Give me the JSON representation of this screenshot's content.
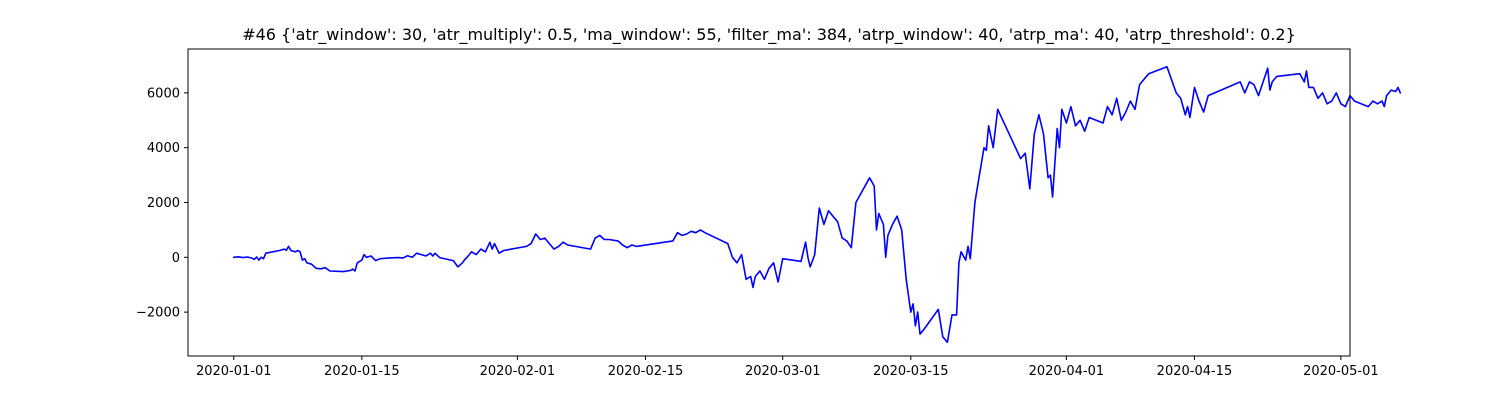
{
  "chart_data": {
    "type": "line",
    "title": "#46 {'atr_window': 30, 'atr_multiply': 0.5, 'ma_window': 55, 'filter_ma': 384, 'atrp_window': 40, 'atrp_ma': 40, 'atrp_threshold': 0.2}",
    "xlabel": "",
    "ylabel": "",
    "x_axis_type": "date",
    "xlim": [
      "2019-12-27",
      "2020-05-02"
    ],
    "ylim": [
      -3600,
      7600
    ],
    "grid": false,
    "legend": "none",
    "x_ticks": [
      {
        "value": "2020-01-01",
        "label": "2020-01-01"
      },
      {
        "value": "2020-01-15",
        "label": "2020-01-15"
      },
      {
        "value": "2020-02-01",
        "label": "2020-02-01"
      },
      {
        "value": "2020-02-15",
        "label": "2020-02-15"
      },
      {
        "value": "2020-03-01",
        "label": "2020-03-01"
      },
      {
        "value": "2020-03-15",
        "label": "2020-03-15"
      },
      {
        "value": "2020-04-01",
        "label": "2020-04-01"
      },
      {
        "value": "2020-04-15",
        "label": "2020-04-15"
      },
      {
        "value": "2020-05-01",
        "label": "2020-05-01"
      }
    ],
    "y_ticks": [
      {
        "value": -2000,
        "label": "−2000"
      },
      {
        "value": 0,
        "label": "0"
      },
      {
        "value": 2000,
        "label": "2000"
      },
      {
        "value": 4000,
        "label": "4000"
      },
      {
        "value": 6000,
        "label": "6000"
      }
    ],
    "series": [
      {
        "color": "#0000ff",
        "points": [
          [
            "2020-01-01 00:00",
            0
          ],
          [
            "2020-01-01 12:00",
            20
          ],
          [
            "2020-01-02 00:00",
            -10
          ],
          [
            "2020-01-02 12:00",
            10
          ],
          [
            "2020-01-03 00:00",
            -30
          ],
          [
            "2020-01-03 06:00",
            -80
          ],
          [
            "2020-01-03 12:00",
            10
          ],
          [
            "2020-01-03 18:00",
            -100
          ],
          [
            "2020-01-04 00:00",
            0
          ],
          [
            "2020-01-04 06:00",
            -50
          ],
          [
            "2020-01-04 12:00",
            150
          ],
          [
            "2020-01-06 00:00",
            250
          ],
          [
            "2020-01-06 12:00",
            300
          ],
          [
            "2020-01-06 18:00",
            260
          ],
          [
            "2020-01-07 00:00",
            400
          ],
          [
            "2020-01-07 06:00",
            250
          ],
          [
            "2020-01-07 18:00",
            200
          ],
          [
            "2020-01-08 00:00",
            250
          ],
          [
            "2020-01-08 06:00",
            200
          ],
          [
            "2020-01-08 12:00",
            -100
          ],
          [
            "2020-01-08 18:00",
            -50
          ],
          [
            "2020-01-09 00:00",
            -200
          ],
          [
            "2020-01-09 12:00",
            -250
          ],
          [
            "2020-01-10 00:00",
            -400
          ],
          [
            "2020-01-10 12:00",
            -420
          ],
          [
            "2020-01-11 00:00",
            -380
          ],
          [
            "2020-01-11 12:00",
            -500
          ],
          [
            "2020-01-13 00:00",
            -520
          ],
          [
            "2020-01-13 18:00",
            -480
          ],
          [
            "2020-01-14 00:00",
            -430
          ],
          [
            "2020-01-14 06:00",
            -500
          ],
          [
            "2020-01-14 12:00",
            -200
          ],
          [
            "2020-01-15 00:00",
            -100
          ],
          [
            "2020-01-15 06:00",
            100
          ],
          [
            "2020-01-15 12:00",
            0
          ],
          [
            "2020-01-16 00:00",
            50
          ],
          [
            "2020-01-16 12:00",
            -120
          ],
          [
            "2020-01-17 00:00",
            -50
          ],
          [
            "2020-01-18 00:00",
            -20
          ],
          [
            "2020-01-19 00:00",
            -10
          ],
          [
            "2020-01-19 12:00",
            -30
          ],
          [
            "2020-01-20 00:00",
            60
          ],
          [
            "2020-01-20 12:00",
            0
          ],
          [
            "2020-01-21 00:00",
            150
          ],
          [
            "2020-01-21 12:00",
            100
          ],
          [
            "2020-01-22 00:00",
            50
          ],
          [
            "2020-01-22 12:00",
            150
          ],
          [
            "2020-01-22 18:00",
            50
          ],
          [
            "2020-01-23 00:00",
            150
          ],
          [
            "2020-01-23 12:00",
            -10
          ],
          [
            "2020-01-25 00:00",
            -120
          ],
          [
            "2020-01-25 12:00",
            -350
          ],
          [
            "2020-01-26 00:00",
            -200
          ],
          [
            "2020-01-26 06:00",
            -80
          ],
          [
            "2020-01-26 12:00",
            0
          ],
          [
            "2020-01-27 00:00",
            200
          ],
          [
            "2020-01-27 12:00",
            100
          ],
          [
            "2020-01-28 00:00",
            300
          ],
          [
            "2020-01-28 12:00",
            200
          ],
          [
            "2020-01-29 00:00",
            550
          ],
          [
            "2020-01-29 06:00",
            300
          ],
          [
            "2020-01-29 12:00",
            500
          ],
          [
            "2020-01-30 00:00",
            150
          ],
          [
            "2020-01-30 12:00",
            250
          ],
          [
            "2020-02-02 00:00",
            400
          ],
          [
            "2020-02-02 12:00",
            500
          ],
          [
            "2020-02-03 00:00",
            850
          ],
          [
            "2020-02-03 12:00",
            650
          ],
          [
            "2020-02-04 00:00",
            700
          ],
          [
            "2020-02-04 12:00",
            500
          ],
          [
            "2020-02-05 00:00",
            300
          ],
          [
            "2020-02-05 12:00",
            400
          ],
          [
            "2020-02-06 00:00",
            550
          ],
          [
            "2020-02-06 12:00",
            450
          ],
          [
            "2020-02-09 00:00",
            300
          ],
          [
            "2020-02-09 12:00",
            700
          ],
          [
            "2020-02-10 00:00",
            800
          ],
          [
            "2020-02-10 12:00",
            650
          ],
          [
            "2020-02-11 00:00",
            650
          ],
          [
            "2020-02-12 00:00",
            600
          ],
          [
            "2020-02-12 12:00",
            450
          ],
          [
            "2020-02-13 00:00",
            350
          ],
          [
            "2020-02-13 12:00",
            450
          ],
          [
            "2020-02-14 00:00",
            400
          ],
          [
            "2020-02-18 00:00",
            600
          ],
          [
            "2020-02-18 12:00",
            900
          ],
          [
            "2020-02-19 00:00",
            800
          ],
          [
            "2020-02-19 12:00",
            850
          ],
          [
            "2020-02-20 00:00",
            950
          ],
          [
            "2020-02-20 12:00",
            900
          ],
          [
            "2020-02-21 00:00",
            1000
          ],
          [
            "2020-02-21 12:00",
            900
          ],
          [
            "2020-02-24 00:00",
            500
          ],
          [
            "2020-02-24 12:00",
            0
          ],
          [
            "2020-02-25 00:00",
            -200
          ],
          [
            "2020-02-25 12:00",
            100
          ],
          [
            "2020-02-26 00:00",
            -800
          ],
          [
            "2020-02-26 12:00",
            -700
          ],
          [
            "2020-02-26 18:00",
            -1100
          ],
          [
            "2020-02-27 00:00",
            -700
          ],
          [
            "2020-02-27 12:00",
            -500
          ],
          [
            "2020-02-28 00:00",
            -800
          ],
          [
            "2020-02-28 12:00",
            -400
          ],
          [
            "2020-02-29 00:00",
            -200
          ],
          [
            "2020-02-29 12:00",
            -900
          ],
          [
            "2020-03-01 00:00",
            -50
          ],
          [
            "2020-03-02 00:00",
            -100
          ],
          [
            "2020-03-03 00:00",
            -150
          ],
          [
            "2020-03-03 12:00",
            550
          ],
          [
            "2020-03-03 18:00",
            0
          ],
          [
            "2020-03-04 00:00",
            -350
          ],
          [
            "2020-03-04 12:00",
            100
          ],
          [
            "2020-03-05 00:00",
            1800
          ],
          [
            "2020-03-05 12:00",
            1200
          ],
          [
            "2020-03-06 00:00",
            1700
          ],
          [
            "2020-03-06 12:00",
            1500
          ],
          [
            "2020-03-07 00:00",
            1300
          ],
          [
            "2020-03-07 12:00",
            700
          ],
          [
            "2020-03-08 00:00",
            600
          ],
          [
            "2020-03-08 12:00",
            350
          ],
          [
            "2020-03-09 00:00",
            2000
          ],
          [
            "2020-03-10 12:00",
            2900
          ],
          [
            "2020-03-11 00:00",
            2600
          ],
          [
            "2020-03-11 06:00",
            1000
          ],
          [
            "2020-03-11 12:00",
            1600
          ],
          [
            "2020-03-12 00:00",
            1200
          ],
          [
            "2020-03-12 06:00",
            0
          ],
          [
            "2020-03-12 12:00",
            800
          ],
          [
            "2020-03-13 00:00",
            1200
          ],
          [
            "2020-03-13 12:00",
            1500
          ],
          [
            "2020-03-14 00:00",
            1000
          ],
          [
            "2020-03-14 12:00",
            -800
          ],
          [
            "2020-03-15 00:00",
            -2000
          ],
          [
            "2020-03-15 06:00",
            -1700
          ],
          [
            "2020-03-15 12:00",
            -2500
          ],
          [
            "2020-03-15 18:00",
            -2000
          ],
          [
            "2020-03-16 00:00",
            -2800
          ],
          [
            "2020-03-16 12:00",
            -2600
          ],
          [
            "2020-03-18 00:00",
            -1900
          ],
          [
            "2020-03-18 12:00",
            -2900
          ],
          [
            "2020-03-19 00:00",
            -3100
          ],
          [
            "2020-03-19 12:00",
            -2100
          ],
          [
            "2020-03-20 00:00",
            -2100
          ],
          [
            "2020-03-20 06:00",
            -200
          ],
          [
            "2020-03-20 12:00",
            200
          ],
          [
            "2020-03-21 00:00",
            -100
          ],
          [
            "2020-03-21 06:00",
            400
          ],
          [
            "2020-03-21 12:00",
            -50
          ],
          [
            "2020-03-22 00:00",
            2000
          ],
          [
            "2020-03-22 12:00",
            3000
          ],
          [
            "2020-03-23 00:00",
            4000
          ],
          [
            "2020-03-23 06:00",
            3900
          ],
          [
            "2020-03-23 12:00",
            4800
          ],
          [
            "2020-03-24 00:00",
            4000
          ],
          [
            "2020-03-24 12:00",
            5400
          ],
          [
            "2020-03-27 00:00",
            3600
          ],
          [
            "2020-03-27 12:00",
            3800
          ],
          [
            "2020-03-28 00:00",
            2500
          ],
          [
            "2020-03-28 12:00",
            4500
          ],
          [
            "2020-03-29 00:00",
            5200
          ],
          [
            "2020-03-29 12:00",
            4500
          ],
          [
            "2020-03-30 00:00",
            2900
          ],
          [
            "2020-03-30 06:00",
            3000
          ],
          [
            "2020-03-30 12:00",
            2200
          ],
          [
            "2020-03-31 00:00",
            4700
          ],
          [
            "2020-03-31 06:00",
            4000
          ],
          [
            "2020-03-31 12:00",
            5400
          ],
          [
            "2020-04-01 00:00",
            4900
          ],
          [
            "2020-04-01 12:00",
            5500
          ],
          [
            "2020-04-02 00:00",
            4800
          ],
          [
            "2020-04-02 12:00",
            5000
          ],
          [
            "2020-04-03 00:00",
            4600
          ],
          [
            "2020-04-03 12:00",
            5100
          ],
          [
            "2020-04-05 00:00",
            4900
          ],
          [
            "2020-04-05 12:00",
            5500
          ],
          [
            "2020-04-06 00:00",
            5200
          ],
          [
            "2020-04-06 12:00",
            5800
          ],
          [
            "2020-04-07 00:00",
            5000
          ],
          [
            "2020-04-07 12:00",
            5300
          ],
          [
            "2020-04-08 00:00",
            5700
          ],
          [
            "2020-04-08 12:00",
            5400
          ],
          [
            "2020-04-09 00:00",
            6300
          ],
          [
            "2020-04-10 00:00",
            6700
          ],
          [
            "2020-04-12 00:00",
            6950
          ],
          [
            "2020-04-13 00:00",
            6000
          ],
          [
            "2020-04-13 12:00",
            5800
          ],
          [
            "2020-04-14 00:00",
            5200
          ],
          [
            "2020-04-14 06:00",
            5500
          ],
          [
            "2020-04-14 12:00",
            5100
          ],
          [
            "2020-04-15 00:00",
            6200
          ],
          [
            "2020-04-15 12:00",
            5700
          ],
          [
            "2020-04-16 00:00",
            5300
          ],
          [
            "2020-04-16 12:00",
            5900
          ],
          [
            "2020-04-20 00:00",
            6400
          ],
          [
            "2020-04-20 12:00",
            6000
          ],
          [
            "2020-04-21 00:00",
            6400
          ],
          [
            "2020-04-21 12:00",
            6300
          ],
          [
            "2020-04-22 00:00",
            5900
          ],
          [
            "2020-04-22 12:00",
            6400
          ],
          [
            "2020-04-23 00:00",
            6900
          ],
          [
            "2020-04-23 06:00",
            6100
          ],
          [
            "2020-04-23 12:00",
            6400
          ],
          [
            "2020-04-24 00:00",
            6600
          ],
          [
            "2020-04-26 12:00",
            6700
          ],
          [
            "2020-04-27 00:00",
            6400
          ],
          [
            "2020-04-27 06:00",
            6800
          ],
          [
            "2020-04-27 12:00",
            6200
          ],
          [
            "2020-04-28 00:00",
            6200
          ],
          [
            "2020-04-28 12:00",
            5800
          ],
          [
            "2020-04-29 00:00",
            6000
          ],
          [
            "2020-04-29 12:00",
            5600
          ],
          [
            "2020-04-30 00:00",
            5700
          ],
          [
            "2020-04-30 12:00",
            6000
          ],
          [
            "2020-05-01 00:00",
            5600
          ],
          [
            "2020-05-01 12:00",
            5500
          ],
          [
            "2020-05-02 00:00",
            5900
          ],
          [
            "2020-05-02 12:00",
            5700
          ],
          [
            "2020-05-04 00:00",
            5500
          ],
          [
            "2020-05-04 12:00",
            5700
          ],
          [
            "2020-05-05 00:00",
            5600
          ],
          [
            "2020-05-05 12:00",
            5700
          ],
          [
            "2020-05-05 18:00",
            5500
          ],
          [
            "2020-05-06 00:00",
            5900
          ],
          [
            "2020-05-06 12:00",
            6100
          ],
          [
            "2020-05-07 00:00",
            6050
          ],
          [
            "2020-05-07 06:00",
            6200
          ],
          [
            "2020-05-07 12:00",
            6000
          ]
        ]
      }
    ]
  }
}
